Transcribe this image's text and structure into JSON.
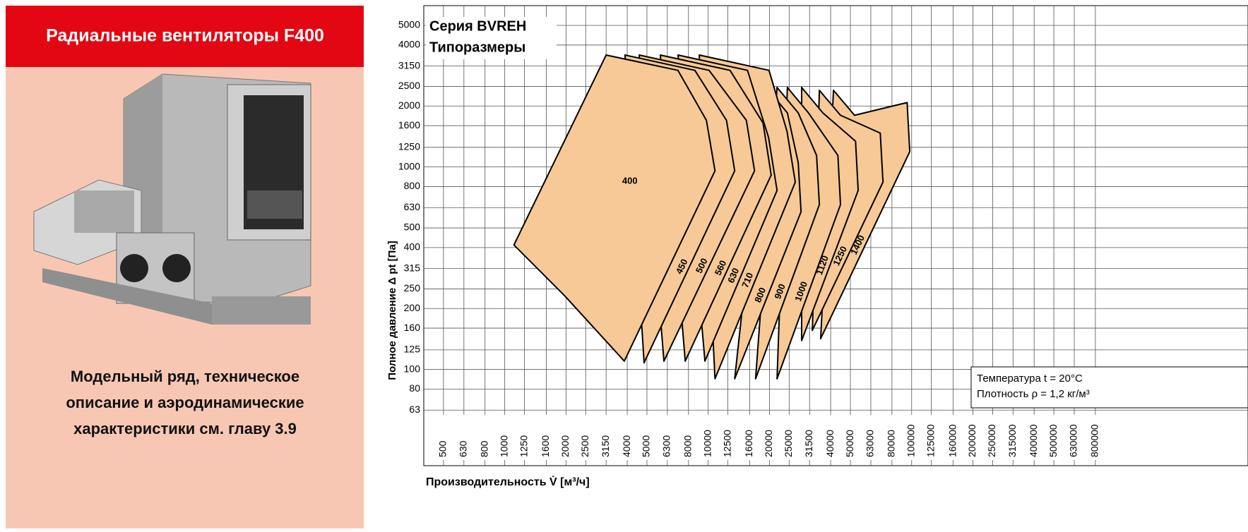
{
  "header": {
    "title": "Радиальные вентиляторы F400"
  },
  "note": {
    "lines": [
      "Модельный ряд, техническое",
      "описание и аэродинамические",
      "характеристики см. главу 3.9"
    ]
  },
  "chart_data": {
    "type": "region",
    "title": "Серия BVREH",
    "subtitle": "Типоразмеры",
    "xlabel": "Производительность V̇ [м³/ч]",
    "ylabel": "Полное давление Δ pt [Па]",
    "log_scale": true,
    "grid": true,
    "xlim": [
      400,
      4500000
    ],
    "ylim": [
      33.5,
      6260
    ],
    "xticks": [
      500,
      630,
      800,
      1000,
      1250,
      1600,
      2000,
      2500,
      3150,
      4000,
      5000,
      6300,
      8000,
      10000,
      12500,
      16000,
      20000,
      25000,
      31500,
      40000,
      50000,
      63000,
      80000,
      100000,
      125000,
      160000,
      200000,
      250000,
      315000,
      400000,
      500000,
      630000,
      800000
    ],
    "yticks": [
      63,
      80,
      100,
      125,
      160,
      200,
      250,
      315,
      400,
      500,
      630,
      800,
      1000,
      1250,
      1600,
      2000,
      2500,
      3150,
      4000,
      5000
    ],
    "annotations": [
      "Температура t = 20°C",
      "Плотность ρ = 1,2 кг/м³"
    ],
    "series": [
      {
        "name": "400",
        "color": "#f6c996",
        "x": [
          3150,
          7100,
          9800,
          10800,
          3870,
          1980,
          1110
        ],
        "values": [
          3570,
          3000,
          1700,
          957,
          110,
          230,
          412
        ]
      },
      {
        "name": "450",
        "color": "#f6c996",
        "x": [
          3900,
          8600,
          12300,
          13500,
          4840
        ],
        "values": [
          3570,
          3000,
          1700,
          957,
          108
        ]
      },
      {
        "name": "500",
        "color": "#f6c996",
        "x": [
          4580,
          10100,
          15400,
          16900,
          6060
        ],
        "values": [
          3570,
          3000,
          1700,
          957,
          110
        ]
      },
      {
        "name": "560",
        "color": "#f6c996",
        "x": [
          5820,
          12800,
          18600,
          20400,
          7710
        ],
        "values": [
          3570,
          3000,
          1650,
          912,
          110
        ]
      },
      {
        "name": "630",
        "color": "#f6c996",
        "x": [
          7110,
          15600,
          19800,
          21800,
          9640
        ],
        "values": [
          3570,
          3000,
          1400,
          766,
          110
        ]
      },
      {
        "name": "710",
        "color": "#f6c996",
        "x": [
          9040,
          19900,
          24400,
          26800,
          10800
        ],
        "values": [
          3570,
          3000,
          1500,
          842,
          90
        ]
      },
      {
        "name": "800",
        "color": "#f6c996",
        "x": [
          19300,
          24500,
          27700,
          28600,
          13500
        ],
        "values": [
          2470,
          1850,
          1050,
          601,
          90
        ]
      },
      {
        "name": "900",
        "color": "#f6c996",
        "x": [
          21800,
          27700,
          34100,
          35200,
          17100
        ],
        "values": [
          2470,
          1850,
          1140,
          652,
          90
        ]
      },
      {
        "name": "1000",
        "color": "#f6c996",
        "x": [
          24500,
          31100,
          43400,
          44700,
          21800
        ],
        "values": [
          2470,
          1850,
          1140,
          652,
          90
        ]
      },
      {
        "name": "1120",
        "color": "#f6c996",
        "x": [
          28800,
          36600,
          53000,
          54600,
          28800
        ],
        "values": [
          2470,
          1850,
          1340,
          766,
          139
        ]
      },
      {
        "name": "1250",
        "color": "#f6c996",
        "x": [
          35200,
          44700,
          70100,
          72300,
          32500
        ],
        "values": [
          2390,
          1800,
          1470,
          842,
          156
        ]
      },
      {
        "name": "1400",
        "color": "#f6c996",
        "x": [
          41300,
          52400,
          95000,
          97900,
          35700
        ],
        "values": [
          2390,
          1800,
          2080,
          1190,
          142
        ]
      }
    ]
  }
}
